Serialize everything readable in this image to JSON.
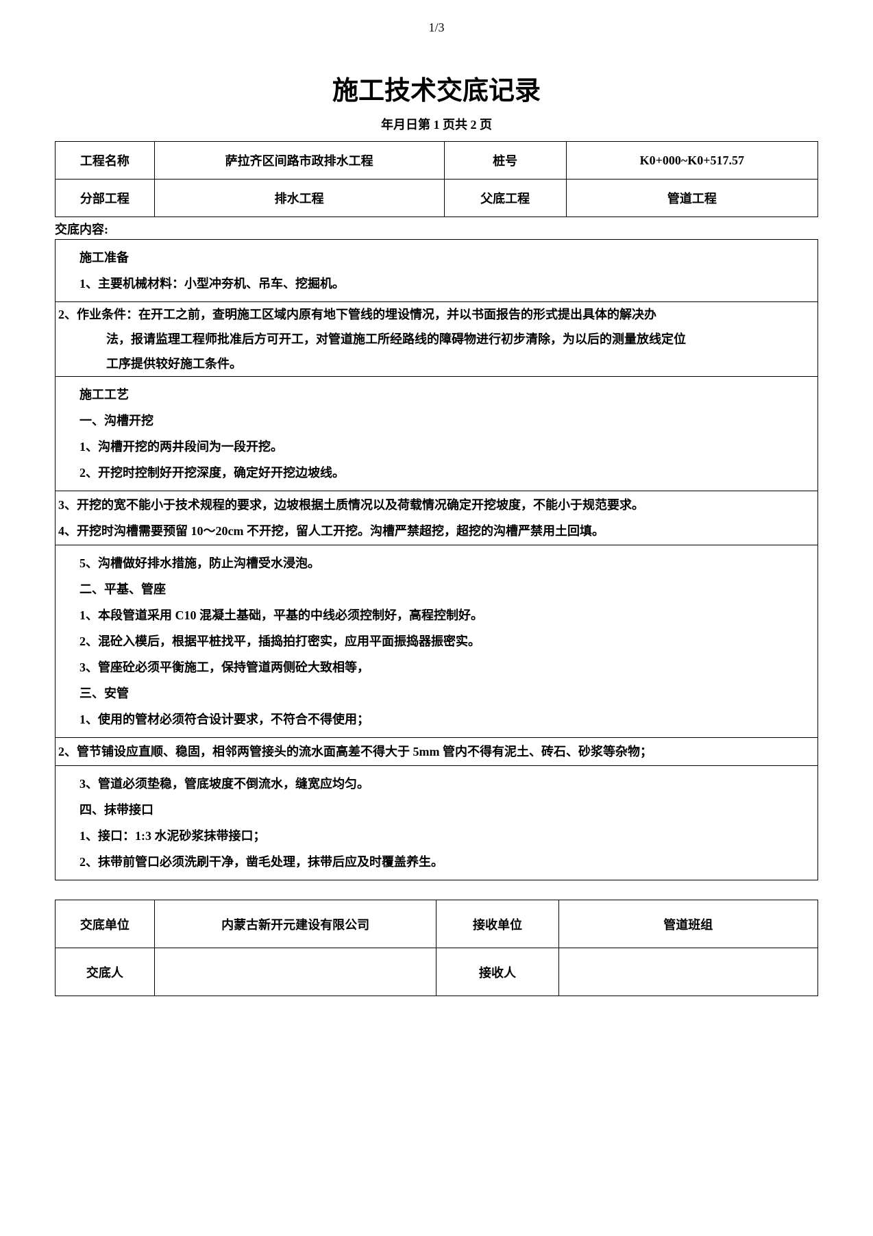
{
  "page_indicator": "1/3",
  "title": "施工技术交底记录",
  "subtitle": "年月日第 1 页共 2 页",
  "header_table": {
    "rows": [
      {
        "c1": "工程名称",
        "c2": "萨拉齐区间路市政排水工程",
        "c3": "桩号",
        "c4": "K0+000~K0+517.57"
      },
      {
        "c1": "分部工程",
        "c2": "排水工程",
        "c3": "父底工程",
        "c4": "管道工程"
      }
    ]
  },
  "content_label": "交底内容:",
  "sections": {
    "s0": {
      "p0": "施工准备",
      "p1": "1、主要机械材料：小型冲夯机、吊车、挖掘机。"
    },
    "box0": {
      "line1": "2、作业条件：在开工之前，查明施工区域内原有地下管线的埋设情况，并以书面报告的形式提出具体的解决办",
      "line2": "法，报请监理工程师批准后方可开工，对管道施工所经路线的障碍物进行初步清除，为以后的测量放线定位",
      "line3": "工序提供较好施工条件。"
    },
    "s1": {
      "p0": "施工工艺",
      "p1": "一、沟槽开挖",
      "p2": "1、沟槽开挖的两井段间为一段开挖。",
      "p3": "2、开挖时控制好开挖深度，确定好开挖边坡线。"
    },
    "box1": {
      "line1": "3、开挖的宽不能小于技术规程的要求，边坡根据土质情况以及荷载情况确定开挖坡度，不能小于规范要求。",
      "line2": "4、开挖时沟槽需要预留 10～20cm 不开挖，留人工开挖。沟槽严禁超挖，超挖的沟槽严禁用土回填。"
    },
    "s2": {
      "p0": "5、沟槽做好排水措施，防止沟槽受水浸泡。",
      "p1": "二、平基、管座",
      "p2": "1、本段管道采用 C10 混凝土基础，平基的中线必须控制好，高程控制好。",
      "p3": "2、混砼入模后，根据平桩找平，插捣拍打密实，应用平面振捣器振密实。",
      "p4": "3、管座砼必须平衡施工，保持管道两侧砼大致相等，",
      "p5": "三、安管",
      "p6": "1、使用的管材必须符合设计要求，不符合不得使用；"
    },
    "box2": {
      "line1": "2、管节铺设应直顺、稳固，相邻两管接头的流水面高差不得大于 5mm 管内不得有泥土、砖石、砂浆等杂物；"
    },
    "s3": {
      "p0": "3、管道必须垫稳，管底坡度不倒流水，缝宽应均匀。",
      "p1": "四、抹带接口",
      "p2": "1、接口：1:3 水泥砂浆抹带接口；",
      "p3": "2、抹带前管口必须洗刷干净，凿毛处理，抹带后应及时覆盖养生。"
    }
  },
  "signoff_table": {
    "rows": [
      {
        "c1": "交底单位",
        "c2": "内蒙古新开元建设有限公司",
        "c3": "接收单位",
        "c4": "管道班组"
      },
      {
        "c1": "交底人",
        "c2": "",
        "c3": "接收人",
        "c4": ""
      }
    ]
  }
}
